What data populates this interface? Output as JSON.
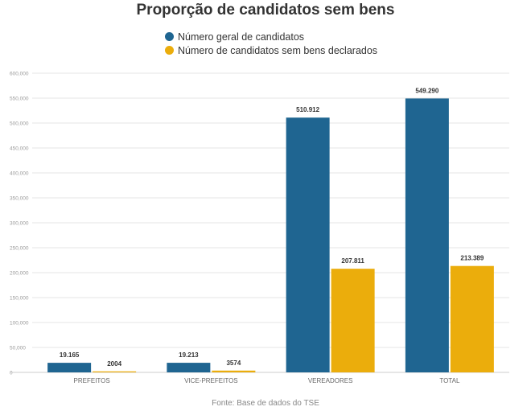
{
  "chart_data": {
    "type": "bar",
    "title": "Proporção de candidatos sem bens",
    "categories": [
      "PREFEITOS",
      "VICE-PREFEITOS",
      "VEREADORES",
      "TOTAL"
    ],
    "series": [
      {
        "name": "Número geral de candidatos",
        "color": "#1f6591",
        "values": [
          19165,
          19213,
          510912,
          549290
        ],
        "labels": [
          "19.165",
          "19.213",
          "510.912",
          "549.290"
        ]
      },
      {
        "name": "Número de candidatos sem bens declarados",
        "color": "#ebad0c",
        "values": [
          2004,
          3574,
          207811,
          213389
        ],
        "labels": [
          "2004",
          "3574",
          "207.811",
          "213.389"
        ]
      }
    ],
    "ylim": [
      0,
      600000
    ],
    "yticks": [
      0,
      50000,
      100000,
      150000,
      200000,
      250000,
      300000,
      350000,
      400000,
      450000,
      500000,
      550000,
      600000
    ],
    "ytick_labels": [
      "0",
      "50,000",
      "100,000",
      "150,000",
      "200,000",
      "250,000",
      "300,000",
      "350,000",
      "400,000",
      "450,000",
      "500,000",
      "550,000",
      "600,000"
    ],
    "grid": true,
    "legend_position": "top-center",
    "source": "Fonte: Base de dados do TSE"
  }
}
